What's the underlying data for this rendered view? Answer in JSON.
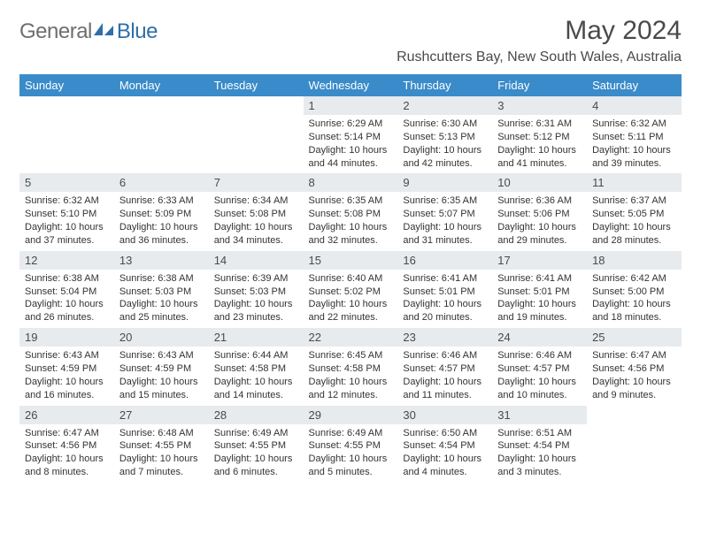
{
  "logo": {
    "text1": "General",
    "text2": "Blue"
  },
  "title": "May 2024",
  "location": "Rushcutters Bay, New South Wales, Australia",
  "colors": {
    "header_bg": "#3a8bc9",
    "header_text": "#ffffff",
    "daynum_bg": "#e7ebee",
    "body_text": "#333333",
    "title_text": "#4a4a4a",
    "logo_gray": "#6e6e6e",
    "logo_blue": "#2f6fa7"
  },
  "weekdays": [
    "Sunday",
    "Monday",
    "Tuesday",
    "Wednesday",
    "Thursday",
    "Friday",
    "Saturday"
  ],
  "grid": [
    [
      null,
      null,
      null,
      {
        "n": "1",
        "sr": "Sunrise: 6:29 AM",
        "ss": "Sunset: 5:14 PM",
        "d1": "Daylight: 10 hours",
        "d2": "and 44 minutes."
      },
      {
        "n": "2",
        "sr": "Sunrise: 6:30 AM",
        "ss": "Sunset: 5:13 PM",
        "d1": "Daylight: 10 hours",
        "d2": "and 42 minutes."
      },
      {
        "n": "3",
        "sr": "Sunrise: 6:31 AM",
        "ss": "Sunset: 5:12 PM",
        "d1": "Daylight: 10 hours",
        "d2": "and 41 minutes."
      },
      {
        "n": "4",
        "sr": "Sunrise: 6:32 AM",
        "ss": "Sunset: 5:11 PM",
        "d1": "Daylight: 10 hours",
        "d2": "and 39 minutes."
      }
    ],
    [
      {
        "n": "5",
        "sr": "Sunrise: 6:32 AM",
        "ss": "Sunset: 5:10 PM",
        "d1": "Daylight: 10 hours",
        "d2": "and 37 minutes."
      },
      {
        "n": "6",
        "sr": "Sunrise: 6:33 AM",
        "ss": "Sunset: 5:09 PM",
        "d1": "Daylight: 10 hours",
        "d2": "and 36 minutes."
      },
      {
        "n": "7",
        "sr": "Sunrise: 6:34 AM",
        "ss": "Sunset: 5:08 PM",
        "d1": "Daylight: 10 hours",
        "d2": "and 34 minutes."
      },
      {
        "n": "8",
        "sr": "Sunrise: 6:35 AM",
        "ss": "Sunset: 5:08 PM",
        "d1": "Daylight: 10 hours",
        "d2": "and 32 minutes."
      },
      {
        "n": "9",
        "sr": "Sunrise: 6:35 AM",
        "ss": "Sunset: 5:07 PM",
        "d1": "Daylight: 10 hours",
        "d2": "and 31 minutes."
      },
      {
        "n": "10",
        "sr": "Sunrise: 6:36 AM",
        "ss": "Sunset: 5:06 PM",
        "d1": "Daylight: 10 hours",
        "d2": "and 29 minutes."
      },
      {
        "n": "11",
        "sr": "Sunrise: 6:37 AM",
        "ss": "Sunset: 5:05 PM",
        "d1": "Daylight: 10 hours",
        "d2": "and 28 minutes."
      }
    ],
    [
      {
        "n": "12",
        "sr": "Sunrise: 6:38 AM",
        "ss": "Sunset: 5:04 PM",
        "d1": "Daylight: 10 hours",
        "d2": "and 26 minutes."
      },
      {
        "n": "13",
        "sr": "Sunrise: 6:38 AM",
        "ss": "Sunset: 5:03 PM",
        "d1": "Daylight: 10 hours",
        "d2": "and 25 minutes."
      },
      {
        "n": "14",
        "sr": "Sunrise: 6:39 AM",
        "ss": "Sunset: 5:03 PM",
        "d1": "Daylight: 10 hours",
        "d2": "and 23 minutes."
      },
      {
        "n": "15",
        "sr": "Sunrise: 6:40 AM",
        "ss": "Sunset: 5:02 PM",
        "d1": "Daylight: 10 hours",
        "d2": "and 22 minutes."
      },
      {
        "n": "16",
        "sr": "Sunrise: 6:41 AM",
        "ss": "Sunset: 5:01 PM",
        "d1": "Daylight: 10 hours",
        "d2": "and 20 minutes."
      },
      {
        "n": "17",
        "sr": "Sunrise: 6:41 AM",
        "ss": "Sunset: 5:01 PM",
        "d1": "Daylight: 10 hours",
        "d2": "and 19 minutes."
      },
      {
        "n": "18",
        "sr": "Sunrise: 6:42 AM",
        "ss": "Sunset: 5:00 PM",
        "d1": "Daylight: 10 hours",
        "d2": "and 18 minutes."
      }
    ],
    [
      {
        "n": "19",
        "sr": "Sunrise: 6:43 AM",
        "ss": "Sunset: 4:59 PM",
        "d1": "Daylight: 10 hours",
        "d2": "and 16 minutes."
      },
      {
        "n": "20",
        "sr": "Sunrise: 6:43 AM",
        "ss": "Sunset: 4:59 PM",
        "d1": "Daylight: 10 hours",
        "d2": "and 15 minutes."
      },
      {
        "n": "21",
        "sr": "Sunrise: 6:44 AM",
        "ss": "Sunset: 4:58 PM",
        "d1": "Daylight: 10 hours",
        "d2": "and 14 minutes."
      },
      {
        "n": "22",
        "sr": "Sunrise: 6:45 AM",
        "ss": "Sunset: 4:58 PM",
        "d1": "Daylight: 10 hours",
        "d2": "and 12 minutes."
      },
      {
        "n": "23",
        "sr": "Sunrise: 6:46 AM",
        "ss": "Sunset: 4:57 PM",
        "d1": "Daylight: 10 hours",
        "d2": "and 11 minutes."
      },
      {
        "n": "24",
        "sr": "Sunrise: 6:46 AM",
        "ss": "Sunset: 4:57 PM",
        "d1": "Daylight: 10 hours",
        "d2": "and 10 minutes."
      },
      {
        "n": "25",
        "sr": "Sunrise: 6:47 AM",
        "ss": "Sunset: 4:56 PM",
        "d1": "Daylight: 10 hours",
        "d2": "and 9 minutes."
      }
    ],
    [
      {
        "n": "26",
        "sr": "Sunrise: 6:47 AM",
        "ss": "Sunset: 4:56 PM",
        "d1": "Daylight: 10 hours",
        "d2": "and 8 minutes."
      },
      {
        "n": "27",
        "sr": "Sunrise: 6:48 AM",
        "ss": "Sunset: 4:55 PM",
        "d1": "Daylight: 10 hours",
        "d2": "and 7 minutes."
      },
      {
        "n": "28",
        "sr": "Sunrise: 6:49 AM",
        "ss": "Sunset: 4:55 PM",
        "d1": "Daylight: 10 hours",
        "d2": "and 6 minutes."
      },
      {
        "n": "29",
        "sr": "Sunrise: 6:49 AM",
        "ss": "Sunset: 4:55 PM",
        "d1": "Daylight: 10 hours",
        "d2": "and 5 minutes."
      },
      {
        "n": "30",
        "sr": "Sunrise: 6:50 AM",
        "ss": "Sunset: 4:54 PM",
        "d1": "Daylight: 10 hours",
        "d2": "and 4 minutes."
      },
      {
        "n": "31",
        "sr": "Sunrise: 6:51 AM",
        "ss": "Sunset: 4:54 PM",
        "d1": "Daylight: 10 hours",
        "d2": "and 3 minutes."
      },
      null
    ]
  ]
}
